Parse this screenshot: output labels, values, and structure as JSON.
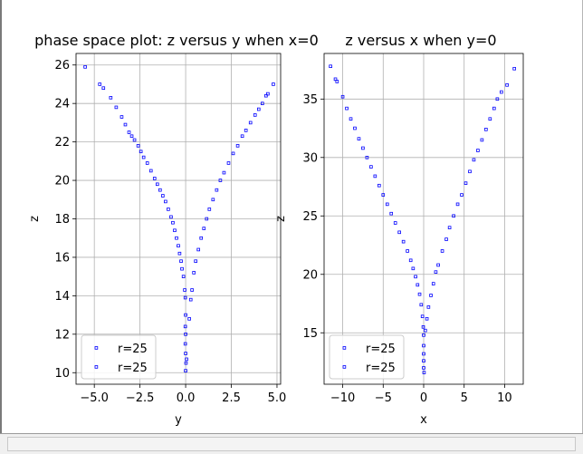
{
  "chart_data": [
    {
      "type": "scatter",
      "title": "phase space plot: z versus y when x=0",
      "xlabel": "y",
      "ylabel": "z",
      "xlim": [
        -6.0,
        5.2
      ],
      "ylim": [
        9.4,
        26.6
      ],
      "xticks": [
        -5.0,
        -2.5,
        0.0,
        2.5,
        5.0
      ],
      "xtick_labels": [
        "−5.0",
        "−2.5",
        "0.0",
        "2.5",
        "5.0"
      ],
      "yticks": [
        10,
        12,
        14,
        16,
        18,
        20,
        22,
        24,
        26
      ],
      "ytick_labels": [
        "10",
        "12",
        "14",
        "16",
        "18",
        "20",
        "22",
        "24",
        "26"
      ],
      "grid": true,
      "legend_position": "lower-left",
      "series": [
        {
          "name": "r=25",
          "color": "#0000ff",
          "marker": "hollow-square",
          "points": [
            [
              -5.5,
              25.9
            ],
            [
              -4.7,
              25.0
            ],
            [
              -4.5,
              24.8
            ],
            [
              -4.1,
              24.3
            ],
            [
              -3.8,
              23.8
            ],
            [
              -3.5,
              23.3
            ],
            [
              -3.3,
              22.9
            ],
            [
              -3.1,
              22.5
            ],
            [
              -2.95,
              22.3
            ],
            [
              -2.8,
              22.1
            ],
            [
              -2.6,
              21.8
            ],
            [
              -2.45,
              21.5
            ],
            [
              -2.3,
              21.2
            ],
            [
              -2.1,
              20.9
            ],
            [
              -1.9,
              20.5
            ],
            [
              -1.7,
              20.1
            ],
            [
              -1.55,
              19.8
            ],
            [
              -1.4,
              19.5
            ],
            [
              -1.25,
              19.2
            ],
            [
              -1.1,
              18.9
            ],
            [
              -0.95,
              18.5
            ],
            [
              -0.8,
              18.1
            ],
            [
              -0.7,
              17.8
            ],
            [
              -0.6,
              17.4
            ],
            [
              -0.5,
              17.0
            ],
            [
              -0.4,
              16.6
            ],
            [
              -0.33,
              16.2
            ],
            [
              -0.25,
              15.8
            ],
            [
              -0.2,
              15.4
            ],
            [
              -0.12,
              15.0
            ],
            [
              -0.05,
              14.3
            ],
            [
              -0.02,
              13.9
            ],
            [
              0.0,
              13.0
            ],
            [
              -0.02,
              12.4
            ],
            [
              0.0,
              12.0
            ],
            [
              -0.02,
              11.5
            ],
            [
              0.0,
              11.0
            ],
            [
              0.02,
              10.5
            ],
            [
              0.0,
              10.1
            ],
            [
              0.05,
              10.7
            ],
            [
              0.2,
              12.8
            ],
            [
              0.28,
              13.8
            ],
            [
              0.35,
              14.3
            ],
            [
              0.45,
              15.2
            ],
            [
              0.55,
              15.8
            ],
            [
              0.7,
              16.4
            ],
            [
              0.85,
              17.0
            ],
            [
              1.0,
              17.5
            ],
            [
              1.15,
              18.0
            ],
            [
              1.3,
              18.5
            ],
            [
              1.5,
              19.0
            ],
            [
              1.7,
              19.5
            ],
            [
              1.9,
              20.0
            ],
            [
              2.1,
              20.4
            ],
            [
              2.35,
              20.9
            ],
            [
              2.6,
              21.4
            ],
            [
              2.85,
              21.8
            ],
            [
              3.1,
              22.3
            ],
            [
              3.3,
              22.6
            ],
            [
              3.55,
              23.0
            ],
            [
              3.8,
              23.4
            ],
            [
              4.0,
              23.7
            ],
            [
              4.2,
              24.0
            ],
            [
              4.4,
              24.4
            ],
            [
              4.5,
              24.5
            ],
            [
              4.8,
              25.0
            ]
          ]
        },
        {
          "name": "r=25",
          "color": "#0000ff",
          "marker": "hollow-square",
          "points": []
        }
      ]
    },
    {
      "type": "scatter",
      "title": "z versus x when y=0",
      "xlabel": "x",
      "ylabel": "z",
      "xlim": [
        -12.3,
        12.3
      ],
      "ylim": [
        10.6,
        38.9
      ],
      "xticks": [
        -10,
        -5,
        0,
        5,
        10
      ],
      "xtick_labels": [
        "−10",
        "−5",
        "0",
        "5",
        "10"
      ],
      "yticks": [
        15,
        20,
        25,
        30,
        35
      ],
      "ytick_labels": [
        "15",
        "20",
        "25",
        "30",
        "35"
      ],
      "grid": true,
      "legend_position": "lower-left",
      "series": [
        {
          "name": "r=25",
          "color": "#0000ff",
          "marker": "hollow-square",
          "points": [
            [
              -11.5,
              37.8
            ],
            [
              -10.9,
              36.7
            ],
            [
              -10.7,
              36.5
            ],
            [
              -10.0,
              35.2
            ],
            [
              -9.5,
              34.2
            ],
            [
              -9.0,
              33.3
            ],
            [
              -8.5,
              32.5
            ],
            [
              -8.0,
              31.6
            ],
            [
              -7.5,
              30.8
            ],
            [
              -7.0,
              30.0
            ],
            [
              -6.5,
              29.2
            ],
            [
              -6.0,
              28.4
            ],
            [
              -5.5,
              27.6
            ],
            [
              -5.0,
              26.8
            ],
            [
              -4.5,
              26.0
            ],
            [
              -4.0,
              25.2
            ],
            [
              -3.5,
              24.4
            ],
            [
              -3.0,
              23.6
            ],
            [
              -2.5,
              22.8
            ],
            [
              -2.0,
              22.0
            ],
            [
              -1.6,
              21.2
            ],
            [
              -1.3,
              20.5
            ],
            [
              -1.0,
              19.8
            ],
            [
              -0.75,
              19.1
            ],
            [
              -0.5,
              18.3
            ],
            [
              -0.3,
              17.4
            ],
            [
              -0.15,
              16.4
            ],
            [
              -0.05,
              15.5
            ],
            [
              0.0,
              14.8
            ],
            [
              0.0,
              13.9
            ],
            [
              0.0,
              13.2
            ],
            [
              0.0,
              12.6
            ],
            [
              0.0,
              12.0
            ],
            [
              0.05,
              11.6
            ],
            [
              0.2,
              15.2
            ],
            [
              0.4,
              16.2
            ],
            [
              0.6,
              17.2
            ],
            [
              0.9,
              18.2
            ],
            [
              1.2,
              19.2
            ],
            [
              1.5,
              20.2
            ],
            [
              1.8,
              20.8
            ],
            [
              2.3,
              22.0
            ],
            [
              2.8,
              23.0
            ],
            [
              3.2,
              24.0
            ],
            [
              3.7,
              25.0
            ],
            [
              4.2,
              26.0
            ],
            [
              4.7,
              26.8
            ],
            [
              5.2,
              27.8
            ],
            [
              5.7,
              28.8
            ],
            [
              6.2,
              29.8
            ],
            [
              6.7,
              30.6
            ],
            [
              7.2,
              31.5
            ],
            [
              7.7,
              32.4
            ],
            [
              8.2,
              33.3
            ],
            [
              8.7,
              34.2
            ],
            [
              9.1,
              35.0
            ],
            [
              9.6,
              35.6
            ],
            [
              10.3,
              36.2
            ],
            [
              11.2,
              37.6
            ]
          ]
        },
        {
          "name": "r=25",
          "color": "#0000ff",
          "marker": "hollow-square",
          "points": []
        }
      ]
    }
  ]
}
